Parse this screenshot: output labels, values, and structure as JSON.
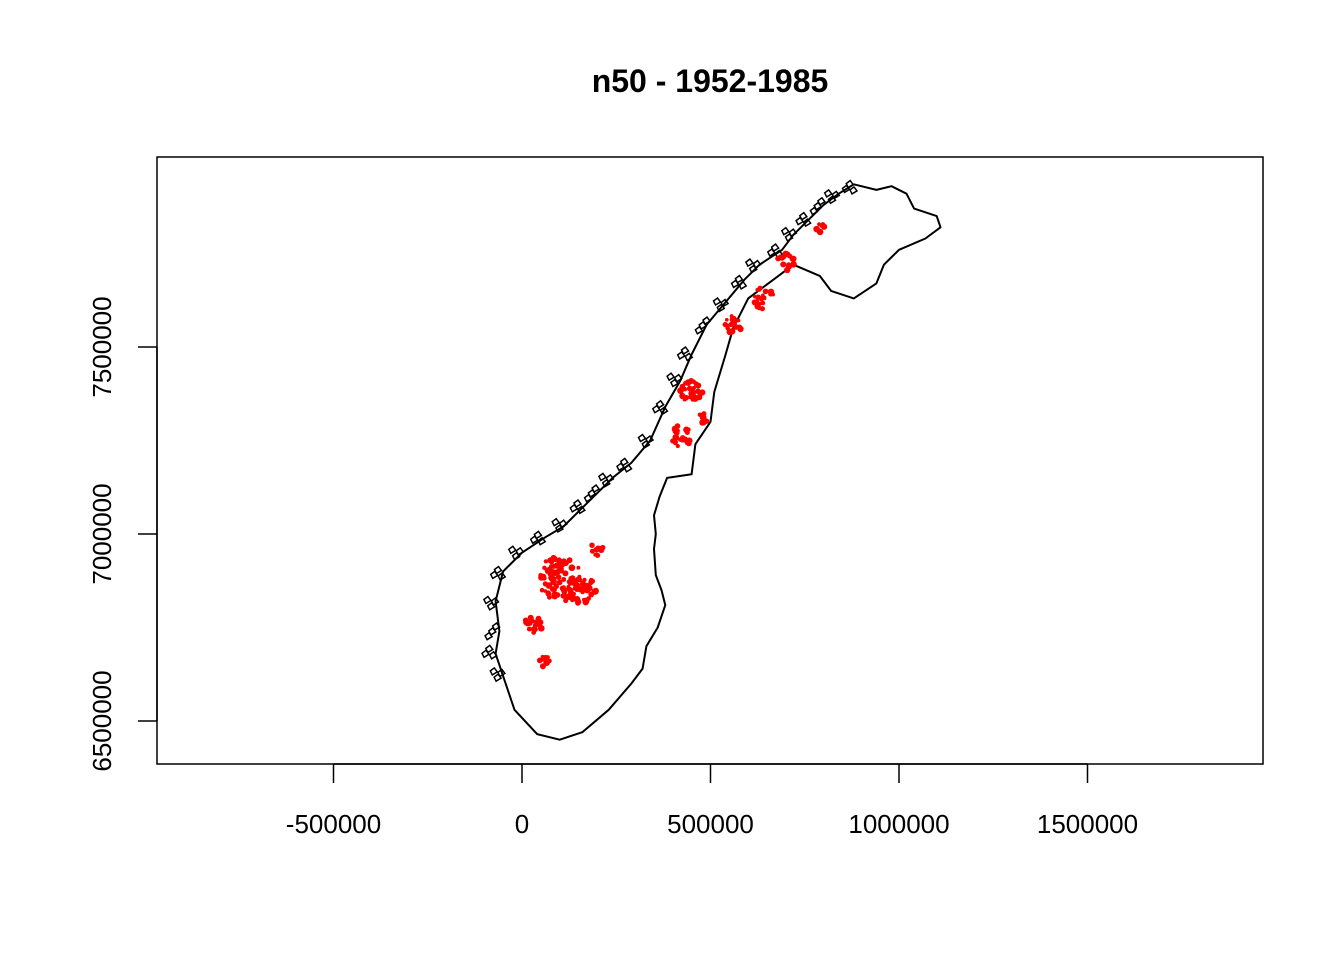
{
  "chart_data": {
    "type": "map",
    "title": "n50 - 1952-1985",
    "xlabel": "",
    "ylabel": "",
    "x_ticks": [
      {
        "value": -500000,
        "label": "-500000"
      },
      {
        "value": 0,
        "label": "0"
      },
      {
        "value": 500000,
        "label": "500000"
      },
      {
        "value": 1000000,
        "label": "1000000"
      },
      {
        "value": 1500000,
        "label": "1500000"
      }
    ],
    "y_ticks": [
      {
        "value": 6500000,
        "label": "6500000"
      },
      {
        "value": 7000000,
        "label": "7000000"
      },
      {
        "value": 7500000,
        "label": "7500000"
      }
    ],
    "xlim": [
      -970000,
      1970000
    ],
    "ylim": [
      6390000,
      8000000
    ],
    "grid": false,
    "legend": "none",
    "layers": [
      {
        "kind": "outline",
        "color": "#000000",
        "shape": "Norway coastline and border"
      },
      {
        "kind": "points",
        "color": "#ff0000",
        "shape": "glacier patches"
      }
    ],
    "outline": [
      [
        -50,
        6620
      ],
      [
        -20,
        6530
      ],
      [
        40,
        6465
      ],
      [
        100,
        6450
      ],
      [
        160,
        6470
      ],
      [
        230,
        6530
      ],
      [
        290,
        6600
      ],
      [
        320,
        6640
      ],
      [
        330,
        6700
      ],
      [
        360,
        6750
      ],
      [
        380,
        6810
      ],
      [
        370,
        6850
      ],
      [
        355,
        6890
      ],
      [
        350,
        6960
      ],
      [
        355,
        7000
      ],
      [
        350,
        7050
      ],
      [
        365,
        7100
      ],
      [
        385,
        7150
      ],
      [
        450,
        7160
      ],
      [
        460,
        7240
      ],
      [
        500,
        7300
      ],
      [
        510,
        7380
      ],
      [
        540,
        7480
      ],
      [
        560,
        7550
      ],
      [
        600,
        7630
      ],
      [
        680,
        7690
      ],
      [
        720,
        7720
      ],
      [
        790,
        7690
      ],
      [
        820,
        7650
      ],
      [
        880,
        7630
      ],
      [
        940,
        7670
      ],
      [
        960,
        7720
      ],
      [
        1000,
        7760
      ],
      [
        1070,
        7790
      ],
      [
        1110,
        7820
      ],
      [
        1100,
        7850
      ],
      [
        1040,
        7870
      ],
      [
        1020,
        7910
      ],
      [
        980,
        7930
      ],
      [
        940,
        7920
      ],
      [
        880,
        7935
      ],
      [
        840,
        7910
      ],
      [
        800,
        7880
      ],
      [
        760,
        7840
      ],
      [
        720,
        7800
      ],
      [
        690,
        7760
      ],
      [
        630,
        7720
      ],
      [
        590,
        7680
      ],
      [
        540,
        7620
      ],
      [
        490,
        7560
      ],
      [
        450,
        7480
      ],
      [
        420,
        7410
      ],
      [
        380,
        7340
      ],
      [
        340,
        7250
      ],
      [
        290,
        7190
      ],
      [
        240,
        7150
      ],
      [
        200,
        7110
      ],
      [
        160,
        7070
      ],
      [
        110,
        7020
      ],
      [
        60,
        6990
      ],
      [
        0,
        6950
      ],
      [
        -50,
        6900
      ],
      [
        -70,
        6820
      ],
      [
        -60,
        6740
      ],
      [
        -70,
        6680
      ],
      [
        -50,
        6620
      ]
    ],
    "glacier_clusters": [
      {
        "x": 100,
        "y": 6880,
        "spread": 60,
        "count": 90
      },
      {
        "x": 160,
        "y": 6850,
        "spread": 40,
        "count": 40
      },
      {
        "x": 30,
        "y": 6760,
        "spread": 25,
        "count": 18
      },
      {
        "x": 60,
        "y": 6660,
        "spread": 15,
        "count": 10
      },
      {
        "x": 195,
        "y": 6960,
        "spread": 20,
        "count": 12
      },
      {
        "x": 450,
        "y": 7380,
        "spread": 30,
        "count": 30
      },
      {
        "x": 420,
        "y": 7260,
        "spread": 30,
        "count": 20
      },
      {
        "x": 480,
        "y": 7310,
        "spread": 15,
        "count": 10
      },
      {
        "x": 560,
        "y": 7560,
        "spread": 25,
        "count": 18
      },
      {
        "x": 640,
        "y": 7630,
        "spread": 30,
        "count": 22
      },
      {
        "x": 700,
        "y": 7730,
        "spread": 25,
        "count": 15
      },
      {
        "x": 790,
        "y": 7820,
        "spread": 15,
        "count": 8
      }
    ]
  }
}
